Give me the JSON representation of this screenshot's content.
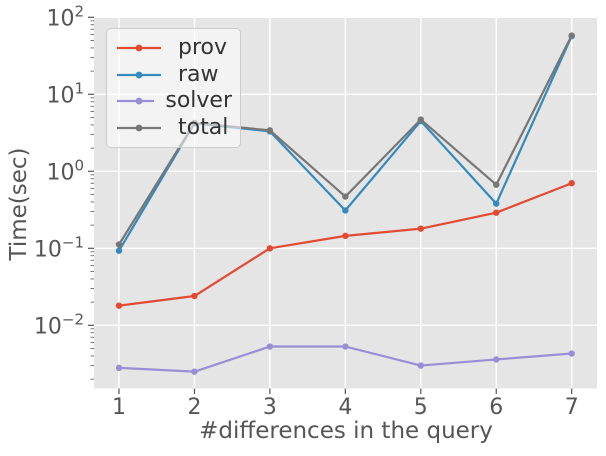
{
  "chart_data": {
    "type": "line",
    "title": "",
    "xlabel": "#differences in the query",
    "ylabel": "Time(sec)",
    "x": [
      1,
      2,
      3,
      4,
      5,
      6,
      7
    ],
    "x_tick_labels": [
      "1",
      "2",
      "3",
      "4",
      "5",
      "6",
      "7"
    ],
    "y_scale": "log",
    "ylim": [
      0.0015,
      100
    ],
    "y_tick_exponents": [
      2,
      1,
      0,
      -1,
      -2
    ],
    "grid": "white major gridlines on gray background",
    "legend_position": "upper left",
    "marker": "circle",
    "series": [
      {
        "name": "prov",
        "color": "#E24A33",
        "values": [
          0.018,
          0.024,
          0.1,
          0.145,
          0.18,
          0.29,
          0.7
        ]
      },
      {
        "name": "raw",
        "color": "#348ABD",
        "values": [
          0.093,
          4.2,
          3.3,
          0.31,
          4.5,
          0.38,
          57
        ]
      },
      {
        "name": "solver",
        "color": "#988ED5",
        "values": [
          0.0028,
          0.0025,
          0.0053,
          0.0053,
          0.003,
          0.0036,
          0.0043
        ]
      },
      {
        "name": "total",
        "color": "#777777",
        "values": [
          0.112,
          4.25,
          3.4,
          0.47,
          4.7,
          0.67,
          58
        ]
      }
    ],
    "colors": {
      "plot_background": "#E5E5E5",
      "gridline": "#FFFFFF",
      "tick_text": "#555555",
      "axis_label_text": "#555555",
      "legend_text": "#333333",
      "legend_background": "rgba(255,255,255,0.55)",
      "legend_border": "#CCCCCC"
    }
  }
}
